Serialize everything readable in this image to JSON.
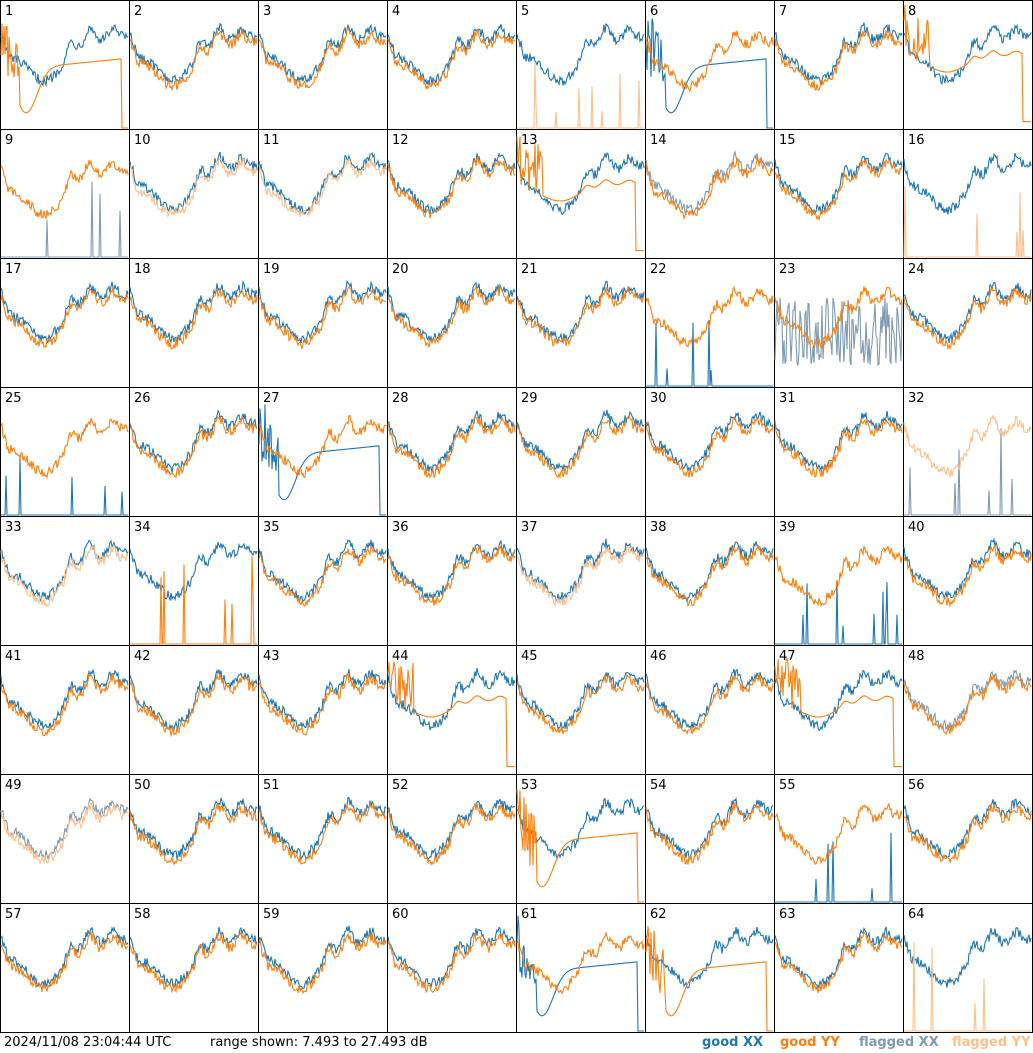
{
  "footer": {
    "timestamp": "2024/11/08 23:04:44 UTC",
    "range_text": "range shown: 7.493 to 27.493 dB"
  },
  "legend": [
    {
      "label": "good XX",
      "color": "#1f77b4"
    },
    {
      "label": "good YY",
      "color": "#ff7f0e"
    },
    {
      "label": "flagged XX",
      "color": "#7f9bb3"
    },
    {
      "label": "flagged YY",
      "color": "#ffbf8a"
    }
  ],
  "chart_data": {
    "type": "line",
    "grid": "8x8 small multiples",
    "units": "dB",
    "ylim": [
      7.493,
      27.493
    ],
    "antenna_numbers": [
      1,
      2,
      3,
      4,
      5,
      6,
      7,
      8,
      9,
      10,
      11,
      12,
      13,
      14,
      15,
      16,
      17,
      18,
      19,
      20,
      21,
      22,
      23,
      24,
      25,
      26,
      27,
      28,
      29,
      30,
      31,
      32,
      33,
      34,
      35,
      36,
      37,
      38,
      39,
      40,
      41,
      42,
      43,
      44,
      45,
      46,
      47,
      48,
      49,
      50,
      51,
      52,
      53,
      54,
      55,
      56,
      57,
      58,
      59,
      60,
      61,
      62,
      63,
      64
    ],
    "antennas": [
      {
        "n": 1,
        "xx": {
          "status": "good",
          "shape": "normal"
        },
        "yy": {
          "status": "good",
          "shape": "sag"
        }
      },
      {
        "n": 2,
        "xx": {
          "status": "good",
          "shape": "normal"
        },
        "yy": {
          "status": "good",
          "shape": "normal"
        }
      },
      {
        "n": 3,
        "xx": {
          "status": "good",
          "shape": "normal"
        },
        "yy": {
          "status": "good",
          "shape": "normal"
        }
      },
      {
        "n": 4,
        "xx": {
          "status": "good",
          "shape": "normal"
        },
        "yy": {
          "status": "good",
          "shape": "normal"
        }
      },
      {
        "n": 5,
        "xx": {
          "status": "good",
          "shape": "normal"
        },
        "yy": {
          "status": "flagged",
          "shape": "spikes"
        }
      },
      {
        "n": 6,
        "xx": {
          "status": "good",
          "shape": "sag"
        },
        "yy": {
          "status": "good",
          "shape": "normal"
        }
      },
      {
        "n": 7,
        "xx": {
          "status": "good",
          "shape": "normal"
        },
        "yy": {
          "status": "good",
          "shape": "normal"
        }
      },
      {
        "n": 8,
        "xx": {
          "status": "good",
          "shape": "normal"
        },
        "yy": {
          "status": "good",
          "shape": "flatdrop"
        }
      },
      {
        "n": 9,
        "xx": {
          "status": "flagged",
          "shape": "spikes"
        },
        "yy": {
          "status": "good",
          "shape": "normal"
        }
      },
      {
        "n": 10,
        "xx": {
          "status": "good",
          "shape": "normal"
        },
        "yy": {
          "status": "flagged",
          "shape": "normal"
        }
      },
      {
        "n": 11,
        "xx": {
          "status": "good",
          "shape": "normal"
        },
        "yy": {
          "status": "flagged",
          "shape": "normal"
        }
      },
      {
        "n": 12,
        "xx": {
          "status": "good",
          "shape": "normal"
        },
        "yy": {
          "status": "good",
          "shape": "normal"
        }
      },
      {
        "n": 13,
        "xx": {
          "status": "good",
          "shape": "normal"
        },
        "yy": {
          "status": "good",
          "shape": "flatdrop"
        }
      },
      {
        "n": 14,
        "xx": {
          "status": "flagged",
          "shape": "normal"
        },
        "yy": {
          "status": "good",
          "shape": "normal"
        }
      },
      {
        "n": 15,
        "xx": {
          "status": "good",
          "shape": "normal"
        },
        "yy": {
          "status": "good",
          "shape": "normal"
        }
      },
      {
        "n": 16,
        "xx": {
          "status": "good",
          "shape": "normal"
        },
        "yy": {
          "status": "flagged",
          "shape": "spikes"
        }
      },
      {
        "n": 17,
        "xx": {
          "status": "good",
          "shape": "normal"
        },
        "yy": {
          "status": "good",
          "shape": "normal"
        }
      },
      {
        "n": 18,
        "xx": {
          "status": "good",
          "shape": "normal"
        },
        "yy": {
          "status": "good",
          "shape": "normal"
        }
      },
      {
        "n": 19,
        "xx": {
          "status": "good",
          "shape": "normal"
        },
        "yy": {
          "status": "good",
          "shape": "normal"
        }
      },
      {
        "n": 20,
        "xx": {
          "status": "good",
          "shape": "normal"
        },
        "yy": {
          "status": "good",
          "shape": "normal"
        }
      },
      {
        "n": 21,
        "xx": {
          "status": "good",
          "shape": "normal"
        },
        "yy": {
          "status": "good",
          "shape": "normal"
        }
      },
      {
        "n": 22,
        "xx": {
          "status": "good",
          "shape": "spikes"
        },
        "yy": {
          "status": "good",
          "shape": "normal"
        }
      },
      {
        "n": 23,
        "xx": {
          "status": "flagged",
          "shape": "noisy"
        },
        "yy": {
          "status": "good",
          "shape": "normal"
        }
      },
      {
        "n": 24,
        "xx": {
          "status": "good",
          "shape": "normal"
        },
        "yy": {
          "status": "good",
          "shape": "normal"
        }
      },
      {
        "n": 25,
        "xx": {
          "status": "good",
          "shape": "spikes"
        },
        "yy": {
          "status": "good",
          "shape": "normal"
        }
      },
      {
        "n": 26,
        "xx": {
          "status": "good",
          "shape": "normal"
        },
        "yy": {
          "status": "good",
          "shape": "normal"
        }
      },
      {
        "n": 27,
        "xx": {
          "status": "good",
          "shape": "sag"
        },
        "yy": {
          "status": "good",
          "shape": "normal"
        }
      },
      {
        "n": 28,
        "xx": {
          "status": "good",
          "shape": "normal"
        },
        "yy": {
          "status": "good",
          "shape": "normal"
        }
      },
      {
        "n": 29,
        "xx": {
          "status": "good",
          "shape": "normal"
        },
        "yy": {
          "status": "good",
          "shape": "normal"
        }
      },
      {
        "n": 30,
        "xx": {
          "status": "good",
          "shape": "normal"
        },
        "yy": {
          "status": "good",
          "shape": "normal"
        }
      },
      {
        "n": 31,
        "xx": {
          "status": "good",
          "shape": "normal"
        },
        "yy": {
          "status": "good",
          "shape": "normal"
        }
      },
      {
        "n": 32,
        "xx": {
          "status": "flagged",
          "shape": "spikes"
        },
        "yy": {
          "status": "flagged",
          "shape": "normal"
        }
      },
      {
        "n": 33,
        "xx": {
          "status": "good",
          "shape": "normal"
        },
        "yy": {
          "status": "flagged",
          "shape": "normal"
        }
      },
      {
        "n": 34,
        "xx": {
          "status": "good",
          "shape": "normal"
        },
        "yy": {
          "status": "good",
          "shape": "spikes"
        }
      },
      {
        "n": 35,
        "xx": {
          "status": "good",
          "shape": "normal"
        },
        "yy": {
          "status": "good",
          "shape": "normal"
        }
      },
      {
        "n": 36,
        "xx": {
          "status": "good",
          "shape": "normal"
        },
        "yy": {
          "status": "good",
          "shape": "normal"
        }
      },
      {
        "n": 37,
        "xx": {
          "status": "good",
          "shape": "normal"
        },
        "yy": {
          "status": "flagged",
          "shape": "normal"
        }
      },
      {
        "n": 38,
        "xx": {
          "status": "good",
          "shape": "normal"
        },
        "yy": {
          "status": "good",
          "shape": "normal"
        }
      },
      {
        "n": 39,
        "xx": {
          "status": "good",
          "shape": "spikes"
        },
        "yy": {
          "status": "good",
          "shape": "normal"
        }
      },
      {
        "n": 40,
        "xx": {
          "status": "good",
          "shape": "normal"
        },
        "yy": {
          "status": "good",
          "shape": "normal"
        }
      },
      {
        "n": 41,
        "xx": {
          "status": "good",
          "shape": "normal"
        },
        "yy": {
          "status": "good",
          "shape": "normal"
        }
      },
      {
        "n": 42,
        "xx": {
          "status": "good",
          "shape": "normal"
        },
        "yy": {
          "status": "good",
          "shape": "normal"
        }
      },
      {
        "n": 43,
        "xx": {
          "status": "good",
          "shape": "normal"
        },
        "yy": {
          "status": "good",
          "shape": "normal"
        }
      },
      {
        "n": 44,
        "xx": {
          "status": "good",
          "shape": "normal"
        },
        "yy": {
          "status": "good",
          "shape": "flatdrop"
        }
      },
      {
        "n": 45,
        "xx": {
          "status": "good",
          "shape": "normal"
        },
        "yy": {
          "status": "good",
          "shape": "normal"
        }
      },
      {
        "n": 46,
        "xx": {
          "status": "good",
          "shape": "normal"
        },
        "yy": {
          "status": "good",
          "shape": "normal"
        }
      },
      {
        "n": 47,
        "xx": {
          "status": "good",
          "shape": "normal"
        },
        "yy": {
          "status": "good",
          "shape": "flatdrop"
        }
      },
      {
        "n": 48,
        "xx": {
          "status": "flagged",
          "shape": "normal"
        },
        "yy": {
          "status": "good",
          "shape": "normal"
        }
      },
      {
        "n": 49,
        "xx": {
          "status": "flagged",
          "shape": "normal"
        },
        "yy": {
          "status": "flagged",
          "shape": "normal"
        }
      },
      {
        "n": 50,
        "xx": {
          "status": "good",
          "shape": "normal"
        },
        "yy": {
          "status": "good",
          "shape": "normal"
        }
      },
      {
        "n": 51,
        "xx": {
          "status": "good",
          "shape": "normal"
        },
        "yy": {
          "status": "good",
          "shape": "normal"
        }
      },
      {
        "n": 52,
        "xx": {
          "status": "good",
          "shape": "normal"
        },
        "yy": {
          "status": "good",
          "shape": "normal"
        }
      },
      {
        "n": 53,
        "xx": {
          "status": "good",
          "shape": "normal"
        },
        "yy": {
          "status": "good",
          "shape": "sag"
        }
      },
      {
        "n": 54,
        "xx": {
          "status": "good",
          "shape": "normal"
        },
        "yy": {
          "status": "good",
          "shape": "normal"
        }
      },
      {
        "n": 55,
        "xx": {
          "status": "good",
          "shape": "spikes"
        },
        "yy": {
          "status": "good",
          "shape": "normal"
        }
      },
      {
        "n": 56,
        "xx": {
          "status": "good",
          "shape": "normal"
        },
        "yy": {
          "status": "good",
          "shape": "normal"
        }
      },
      {
        "n": 57,
        "xx": {
          "status": "good",
          "shape": "normal"
        },
        "yy": {
          "status": "good",
          "shape": "normal"
        }
      },
      {
        "n": 58,
        "xx": {
          "status": "good",
          "shape": "normal"
        },
        "yy": {
          "status": "good",
          "shape": "normal"
        }
      },
      {
        "n": 59,
        "xx": {
          "status": "good",
          "shape": "normal"
        },
        "yy": {
          "status": "good",
          "shape": "normal"
        }
      },
      {
        "n": 60,
        "xx": {
          "status": "good",
          "shape": "normal"
        },
        "yy": {
          "status": "good",
          "shape": "normal"
        }
      },
      {
        "n": 61,
        "xx": {
          "status": "good",
          "shape": "sag"
        },
        "yy": {
          "status": "good",
          "shape": "normal"
        }
      },
      {
        "n": 62,
        "xx": {
          "status": "good",
          "shape": "normal"
        },
        "yy": {
          "status": "good",
          "shape": "sag"
        }
      },
      {
        "n": 63,
        "xx": {
          "status": "good",
          "shape": "normal"
        },
        "yy": {
          "status": "good",
          "shape": "normal"
        }
      },
      {
        "n": 64,
        "xx": {
          "status": "good",
          "shape": "normal"
        },
        "yy": {
          "status": "flagged",
          "shape": "spikes"
        }
      }
    ]
  }
}
